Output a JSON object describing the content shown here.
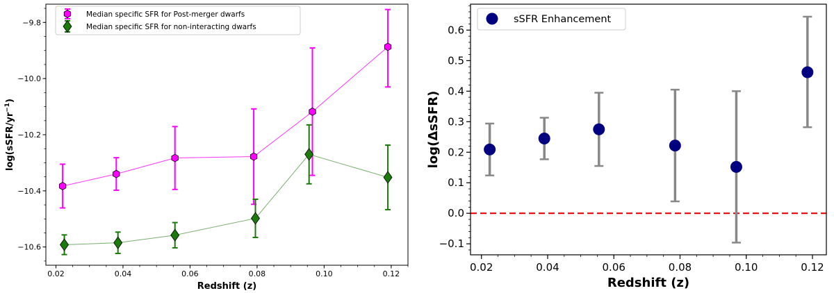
{
  "chart_data": [
    {
      "type": "line",
      "title": "",
      "xlabel": "Redshift (z)",
      "ylabel": "log(sSFR/yr",
      "ylabel_sup": "−1",
      "ylabel_close": ")",
      "xlim": [
        0.017,
        0.125
      ],
      "ylim": [
        -10.665,
        -9.735
      ],
      "xticks": [
        0.02,
        0.04,
        0.06,
        0.08,
        0.1,
        0.12
      ],
      "xtick_labels": [
        "0.02",
        "0.04",
        "0.06",
        "0.08",
        "0.10",
        "0.12"
      ],
      "yticks": [
        -10.6,
        -10.4,
        -10.2,
        -10.0,
        -9.8
      ],
      "ytick_labels": [
        "−10.6",
        "−10.4",
        "−10.2",
        "−10.0",
        "−9.8"
      ],
      "grid": false,
      "legend_position": "top-left",
      "series": [
        {
          "name": "Median specific SFR for Post-merger dwarfs",
          "marker": "hexagon",
          "color": "#ff00ff",
          "x": [
            0.022,
            0.038,
            0.0555,
            0.079,
            0.0965,
            0.119
          ],
          "y": [
            -10.383,
            -10.34,
            -10.283,
            -10.278,
            -10.118,
            -9.887
          ],
          "err_low": [
            0.078,
            0.058,
            0.112,
            0.17,
            0.227,
            0.143
          ],
          "err_high": [
            0.078,
            0.058,
            0.112,
            0.17,
            0.227,
            0.133
          ]
        },
        {
          "name": "Median specific SFR for non-interacting dwarfs",
          "marker": "diamond",
          "color": "#1a7a0a",
          "x": [
            0.0225,
            0.0385,
            0.0555,
            0.0795,
            0.0955,
            0.119
          ],
          "y": [
            -10.592,
            -10.585,
            -10.558,
            -10.498,
            -10.27,
            -10.352
          ],
          "err_low": [
            0.035,
            0.038,
            0.045,
            0.068,
            0.105,
            0.115
          ],
          "err_high": [
            0.035,
            0.038,
            0.045,
            0.068,
            0.105,
            0.115
          ]
        }
      ]
    },
    {
      "type": "scatter",
      "title": "",
      "xlabel": "Redshift (z)",
      "ylabel": "log(ΔsSFR)",
      "xlim": [
        0.0167,
        0.1242
      ],
      "ylim": [
        -0.136,
        0.685
      ],
      "xticks": [
        0.02,
        0.04,
        0.06,
        0.08,
        0.1,
        0.12
      ],
      "xtick_labels": [
        "0.02",
        "0.04",
        "0.06",
        "0.08",
        "0.10",
        "0.12"
      ],
      "yticks": [
        -0.1,
        0.0,
        0.1,
        0.2,
        0.3,
        0.4,
        0.5,
        0.6
      ],
      "ytick_labels": [
        "−0.1",
        "0.0",
        "0.1",
        "0.2",
        "0.3",
        "0.4",
        "0.5",
        "0.6"
      ],
      "grid": false,
      "legend_position": "top-left",
      "reference_line": {
        "y": 0.0,
        "color": "#ee0000",
        "style": "dashed"
      },
      "series": [
        {
          "name": "sSFR Enhancement",
          "marker": "circle",
          "color": "#000080",
          "error_color": "#888888",
          "x": [
            0.0225,
            0.039,
            0.0555,
            0.0785,
            0.097,
            0.1185
          ],
          "y": [
            0.209,
            0.245,
            0.275,
            0.222,
            0.152,
            0.462
          ],
          "err_low": [
            0.085,
            0.068,
            0.12,
            0.183,
            0.248,
            0.18
          ],
          "err_high": [
            0.085,
            0.068,
            0.12,
            0.183,
            0.248,
            0.182
          ]
        }
      ]
    }
  ]
}
